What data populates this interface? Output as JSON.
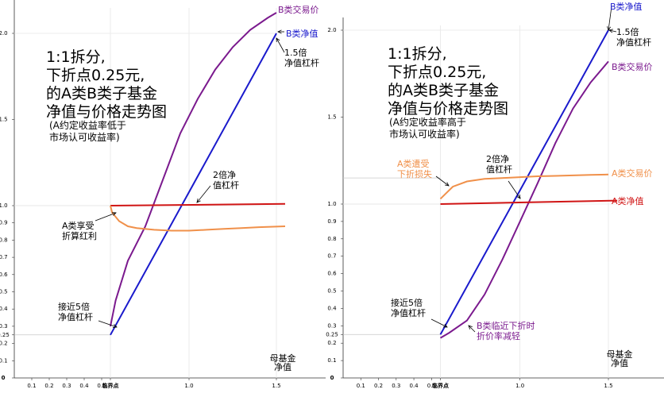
{
  "chart_data": [
    {
      "type": "line",
      "title_lines": [
        "1:1拆分,",
        "下折点0.25元,",
        "的A类B类子基金",
        "净值与价格走势图"
      ],
      "subtitle_lines": [
        "(A约定收益率低于",
        "市场认可收益率)"
      ],
      "xlabel_lines": [
        "母基金",
        "净值"
      ],
      "xlim": [
        0,
        1.55
      ],
      "ylim": [
        0,
        2.1
      ],
      "x_ticks": [
        "0.1",
        "0.2",
        "0.3",
        "0.4",
        "0.5",
        "临界点",
        "1.0",
        "1.5"
      ],
      "y_ticks": [
        "2.0",
        "1.5",
        "1.0",
        "0.9",
        "0.8",
        "0.7",
        "0.6",
        "0.5",
        "0.4",
        "0.3",
        "0.25",
        "0.2",
        "0.1",
        "0"
      ],
      "series": [
        {
          "name": "B类交易价",
          "color": "#7b1a8e",
          "x": [
            0.55,
            0.58,
            0.65,
            0.75,
            0.85,
            0.95,
            1.05,
            1.15,
            1.25,
            1.35,
            1.45,
            1.5
          ],
          "y": [
            0.3,
            0.45,
            0.68,
            0.88,
            1.15,
            1.42,
            1.62,
            1.79,
            1.92,
            2.02,
            2.09,
            2.12
          ]
        },
        {
          "name": "B类净值",
          "color": "#1a1acc",
          "x": [
            0.55,
            1.5
          ],
          "y": [
            0.25,
            2.0
          ]
        },
        {
          "name": "A类净值",
          "color": "#d01515",
          "x": [
            0.55,
            1.55
          ],
          "y": [
            1.0,
            1.01
          ]
        },
        {
          "name": "A类交易价",
          "color": "#f0904a",
          "x": [
            0.55,
            0.56,
            0.6,
            0.65,
            0.7,
            0.8,
            0.9,
            1.0,
            1.1,
            1.2,
            1.3,
            1.4,
            1.55
          ],
          "y": [
            1.0,
            0.96,
            0.91,
            0.88,
            0.87,
            0.86,
            0.855,
            0.855,
            0.86,
            0.865,
            0.87,
            0.875,
            0.88
          ]
        }
      ],
      "annotations": [
        {
          "text": [
            "B类交易价"
          ],
          "color": "#7b1a8e"
        },
        {
          "text": [
            "B类净值"
          ],
          "color": "#1a1acc"
        },
        {
          "text": [
            "1.5倍",
            "净值杠杆"
          ],
          "color": "#000000"
        },
        {
          "text": [
            "2倍净",
            "值杠杆"
          ],
          "color": "#000000"
        },
        {
          "text": [
            "A类享受",
            "折算红利"
          ],
          "color": "#000000"
        },
        {
          "text": [
            "接近5倍",
            "净值杠杆"
          ],
          "color": "#000000"
        }
      ]
    },
    {
      "type": "line",
      "title_lines": [
        "1:1拆分,",
        "下折点0.25元,",
        "的A类B类子基金",
        "净值与价格走势图"
      ],
      "subtitle_lines": [
        "(A约定收益率高于",
        "市场认可收益率)"
      ],
      "xlabel_lines": [
        "母基金",
        "净值"
      ],
      "xlim": [
        0,
        1.55
      ],
      "ylim": [
        0,
        2.1
      ],
      "x_ticks": [
        "0.1",
        "0.2",
        "0.3",
        "0.4",
        "0.5",
        "临界点",
        "1.0",
        "1.5"
      ],
      "y_ticks": [
        "2.0",
        "1.5",
        "1.0",
        "0.9",
        "0.8",
        "0.7",
        "0.6",
        "0.5",
        "0.4",
        "0.3",
        "0.25",
        "0.2",
        "0.1",
        "0"
      ],
      "series": [
        {
          "name": "B类净值",
          "color": "#1a1acc",
          "x": [
            0.55,
            1.5
          ],
          "y": [
            0.25,
            2.0
          ]
        },
        {
          "name": "B类交易价",
          "color": "#7b1a8e",
          "x": [
            0.55,
            0.6,
            0.7,
            0.8,
            0.9,
            1.0,
            1.1,
            1.2,
            1.3,
            1.4,
            1.5
          ],
          "y": [
            0.23,
            0.26,
            0.33,
            0.48,
            0.68,
            0.9,
            1.12,
            1.35,
            1.55,
            1.7,
            1.82
          ]
        },
        {
          "name": "A类净值",
          "color": "#d01515",
          "x": [
            0.55,
            1.55
          ],
          "y": [
            1.0,
            1.02
          ]
        },
        {
          "name": "A类交易价",
          "color": "#f0904a",
          "x": [
            0.55,
            0.58,
            0.62,
            0.7,
            0.8,
            0.9,
            1.0,
            1.1,
            1.2,
            1.3,
            1.4,
            1.5
          ],
          "y": [
            1.03,
            1.06,
            1.1,
            1.13,
            1.145,
            1.15,
            1.155,
            1.16,
            1.162,
            1.165,
            1.168,
            1.17
          ]
        }
      ],
      "annotations": [
        {
          "text": [
            "B类净值"
          ],
          "color": "#1a1acc"
        },
        {
          "text": [
            "1.5倍",
            "净值杠杆"
          ],
          "color": "#000000"
        },
        {
          "text": [
            "B类交易价"
          ],
          "color": "#7b1a8e"
        },
        {
          "text": [
            "A类遭受",
            "下折损失"
          ],
          "color": "#f0904a"
        },
        {
          "text": [
            "2倍净",
            "值杠杆"
          ],
          "color": "#000000"
        },
        {
          "text": [
            "A类交易价"
          ],
          "color": "#f0904a"
        },
        {
          "text": [
            "A类净值"
          ],
          "color": "#d01515"
        },
        {
          "text": [
            "接近5倍",
            "净值杠杆"
          ],
          "color": "#000000"
        },
        {
          "text": [
            "B类临近下折时",
            "折价率减轻"
          ],
          "color": "#7b1a8e"
        }
      ]
    }
  ]
}
